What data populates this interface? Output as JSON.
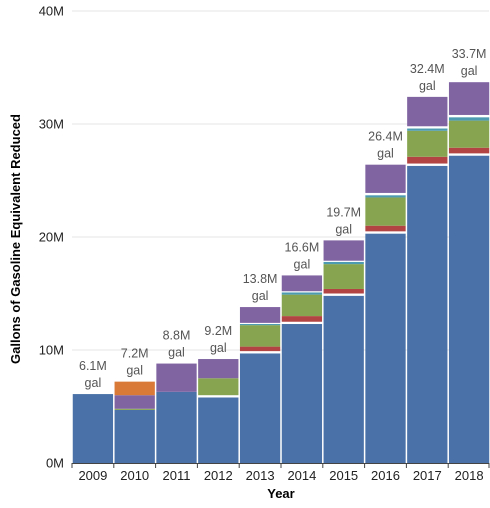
{
  "chart_data": {
    "type": "bar",
    "stacked": true,
    "categories": [
      "2009",
      "2010",
      "2011",
      "2012",
      "2013",
      "2014",
      "2015",
      "2016",
      "2017",
      "2018"
    ],
    "xlabel": "Year",
    "ylabel": "Gallons of Gasoline Equivalent Reduced",
    "ylim": [
      0,
      40
    ],
    "yticks": [
      0,
      10,
      20,
      30,
      40
    ],
    "ytick_labels": [
      "0M",
      "10M",
      "20M",
      "30M",
      "40M"
    ],
    "grid": true,
    "series": [
      {
        "color": "#4a72a8",
        "values": [
          6.1,
          4.7,
          6.3,
          5.8,
          9.7,
          12.3,
          14.8,
          20.3,
          26.3,
          27.2
        ]
      },
      {
        "color": "#ffffff",
        "values": [
          0.0,
          0.0,
          0.0,
          0.2,
          0.2,
          0.2,
          0.2,
          0.2,
          0.2,
          0.2
        ]
      },
      {
        "color": "#b24443",
        "values": [
          0.0,
          0.0,
          0.0,
          0.0,
          0.4,
          0.5,
          0.4,
          0.5,
          0.6,
          0.5
        ]
      },
      {
        "color": "#87a550",
        "values": [
          0.0,
          0.1,
          0.0,
          1.5,
          1.9,
          1.9,
          2.2,
          2.5,
          2.3,
          2.4
        ]
      },
      {
        "color": "#4d9bb0",
        "values": [
          0.0,
          0.0,
          0.0,
          0.0,
          0.1,
          0.2,
          0.2,
          0.2,
          0.2,
          0.3
        ]
      },
      {
        "color": "#ffffff",
        "values": [
          0.0,
          0.0,
          0.0,
          0.0,
          0.1,
          0.1,
          0.1,
          0.2,
          0.2,
          0.2
        ]
      },
      {
        "color": "#8064a2",
        "values": [
          0.0,
          1.2,
          2.5,
          1.7,
          1.4,
          1.4,
          1.8,
          2.5,
          2.6,
          2.9
        ]
      },
      {
        "color": "#d97a38",
        "values": [
          0.0,
          1.2,
          0.0,
          0.0,
          0.0,
          0.0,
          0.0,
          0.0,
          0.0,
          0.0
        ]
      }
    ],
    "totals": [
      6.1,
      7.2,
      8.8,
      9.2,
      13.8,
      16.6,
      19.7,
      26.4,
      32.4,
      33.7
    ],
    "data_labels": [
      [
        "6.1M",
        "gal"
      ],
      [
        "7.2M",
        "gal"
      ],
      [
        "8.8M",
        "gal"
      ],
      [
        "9.2M",
        "gal"
      ],
      [
        "13.8M",
        "gal"
      ],
      [
        "16.6M",
        "gal"
      ],
      [
        "19.7M",
        "gal"
      ],
      [
        "26.4M",
        "gal"
      ],
      [
        "32.4M",
        "gal"
      ],
      [
        "33.7M",
        "gal"
      ]
    ]
  }
}
